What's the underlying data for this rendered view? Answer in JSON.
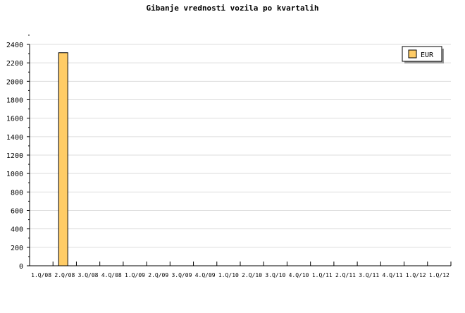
{
  "chart_data": {
    "type": "bar",
    "title": "Gibanje vrednosti vozila po kvartalih",
    "xlabel": "",
    "ylabel": "",
    "categories": [
      "1.Q/08",
      "2.Q/08",
      "3.Q/08",
      "4.Q/08",
      "1.Q/09",
      "2.Q/09",
      "3.Q/09",
      "4.Q/09",
      "1.Q/10",
      "2.Q/10",
      "3.Q/10",
      "4.Q/10",
      "1.Q/11",
      "2.Q/11",
      "3.Q/11",
      "4.Q/11",
      "1.Q/12",
      "1.Q/12"
    ],
    "series": [
      {
        "name": "EUR",
        "values": [
          null,
          2310,
          null,
          null,
          null,
          null,
          null,
          null,
          null,
          null,
          null,
          null,
          null,
          null,
          null,
          null,
          null,
          null
        ],
        "color": "#ffcc66"
      }
    ],
    "ylim": [
      0,
      2400
    ],
    "yticks": [
      0,
      200,
      400,
      600,
      800,
      1000,
      1200,
      1400,
      1600,
      1800,
      2000,
      2200,
      2400
    ],
    "grid": true,
    "legend": "top-right"
  }
}
